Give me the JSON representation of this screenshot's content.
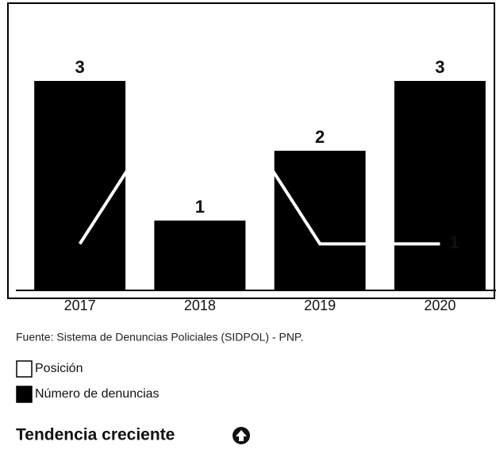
{
  "chart_data": {
    "type": "bar",
    "categories": [
      "2017",
      "2018",
      "2019",
      "2020"
    ],
    "series": [
      {
        "name": "Número de denuncias",
        "type": "bar",
        "color": "#000000",
        "values": [
          3,
          1,
          2,
          3
        ]
      },
      {
        "name": "Posición",
        "type": "line",
        "axis": "y2",
        "color": "#ffffff",
        "values": [
          1,
          5,
          1,
          1
        ],
        "value_labels": [
          null,
          null,
          null,
          "1"
        ]
      }
    ],
    "ylim": [
      0,
      4
    ],
    "y2lim": [
      0,
      6
    ],
    "grid": false,
    "source": "Fuente: Sistema de Denuncias Policiales (SIDPOL) - PNP."
  },
  "trend": "Tendencia creciente"
}
